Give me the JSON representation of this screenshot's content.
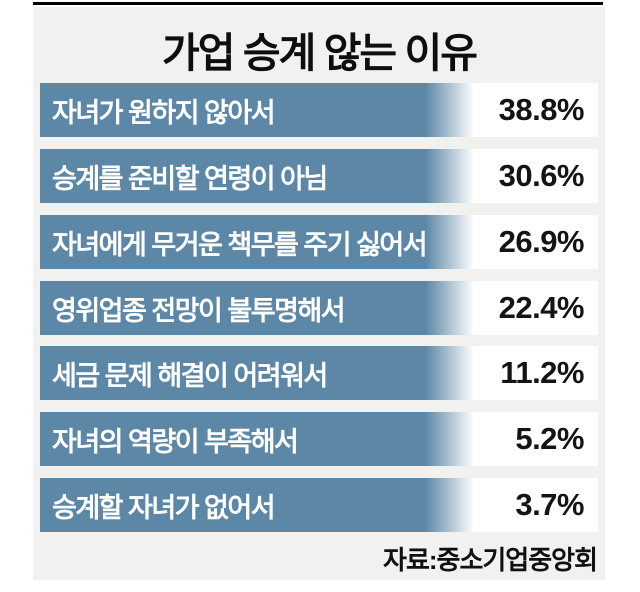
{
  "title": "가업 승계 않는 이유",
  "source": "자료:중소기업중앙회",
  "rows": [
    {
      "label": "자녀가 원하지 않아서",
      "value": "38.8%"
    },
    {
      "label": "승계를 준비할 연령이 아님",
      "value": "30.6%"
    },
    {
      "label": "자녀에게 무거운 책무를 주기 싫어서",
      "value": "26.9%"
    },
    {
      "label": "영위업종 전망이 불투명해서",
      "value": "22.4%"
    },
    {
      "label": "세금 문제 해결이 어려워서",
      "value": "11.2%"
    },
    {
      "label": "자녀의 역량이 부족해서",
      "value": "5.2%"
    },
    {
      "label": "승계할 자녀가 없어서",
      "value": "3.7%"
    }
  ],
  "colors": {
    "bar": "#5c87a6",
    "panel_background": "#f1f1f0",
    "value_box_background": "#ffffff",
    "bar_label_text": "#ffffff",
    "value_text": "#141414",
    "title_text": "#0e0e0e",
    "top_rule": "#000000"
  },
  "chart_data": {
    "type": "bar",
    "orientation": "horizontal",
    "title": "가업 승계 않는 이유",
    "categories": [
      "자녀가 원하지 않아서",
      "승계를 준비할 연령이 아님",
      "자녀에게 무거운 책무를 주기 싫어서",
      "영위업종 전망이 불투명해서",
      "세금 문제 해결이 어려워서",
      "자녀의 역량이 부족해서",
      "승계할 자녀가 없어서"
    ],
    "values": [
      38.8,
      30.6,
      26.9,
      22.4,
      11.2,
      5.2,
      3.7
    ],
    "unit": "%",
    "value_labels": [
      "38.8%",
      "30.6%",
      "26.9%",
      "22.4%",
      "11.2%",
      "5.2%",
      "3.7%"
    ],
    "source": "자료:중소기업중앙회",
    "grid": false,
    "legend": false,
    "layout_note": "infographic style: all bars drawn at equal length with value text in a white box at right of each bar"
  }
}
